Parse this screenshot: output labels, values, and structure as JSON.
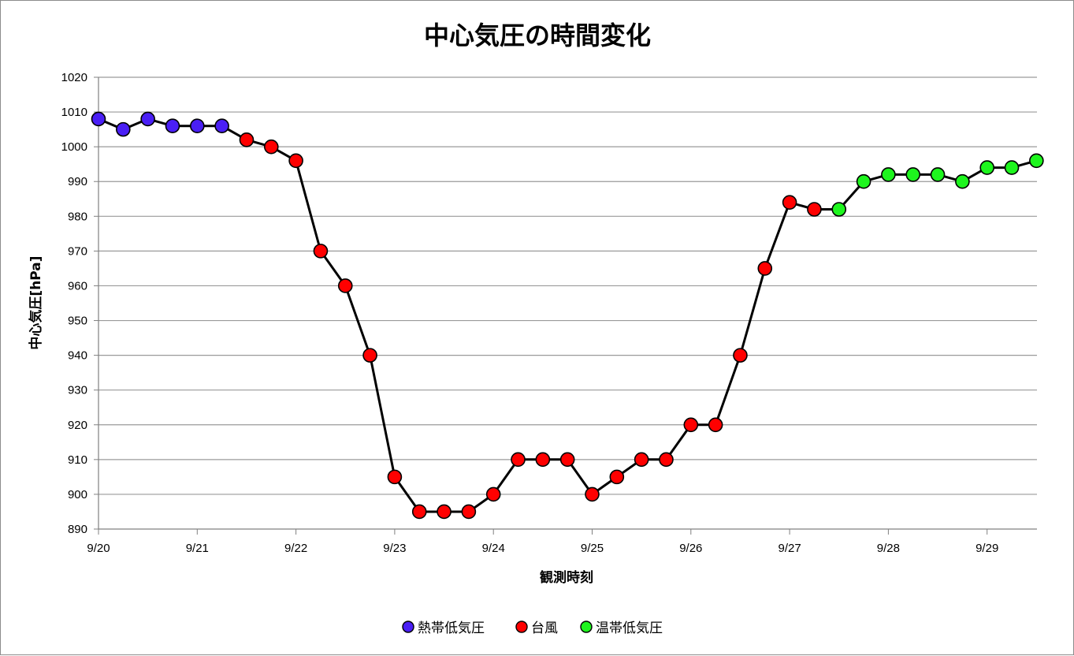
{
  "chart_data": {
    "type": "line",
    "title": "中心気圧の時間変化",
    "xlabel": "観測時刻",
    "ylabel": "中心気圧[hPa]",
    "xlim": [
      "9/20",
      "9/29 12:00"
    ],
    "ylim": [
      890,
      1020
    ],
    "y_ticks": [
      890,
      900,
      910,
      920,
      930,
      940,
      950,
      960,
      970,
      980,
      990,
      1000,
      1010,
      1020
    ],
    "x_tick_labels": [
      "9/20",
      "9/21",
      "9/22",
      "9/23",
      "9/24",
      "9/25",
      "9/26",
      "9/27",
      "9/28",
      "9/29"
    ],
    "grid": "horizontal",
    "legend_position": "bottom",
    "line_color": "#000000",
    "series": [
      {
        "name": "熱帯低気圧",
        "color": "#4a1ff5",
        "x": [
          "9/20 00:00",
          "9/20 06:00",
          "9/20 12:00",
          "9/20 18:00",
          "9/21 00:00",
          "9/21 06:00"
        ],
        "values": [
          1008,
          1005,
          1008,
          1006,
          1006,
          1006
        ]
      },
      {
        "name": "台風",
        "color": "#ff0000",
        "x": [
          "9/21 12:00",
          "9/21 18:00",
          "9/22 00:00",
          "9/22 06:00",
          "9/22 12:00",
          "9/22 18:00",
          "9/23 00:00",
          "9/23 06:00",
          "9/23 12:00",
          "9/23 18:00",
          "9/24 00:00",
          "9/24 06:00",
          "9/24 12:00",
          "9/24 18:00",
          "9/25 00:00",
          "9/25 06:00",
          "9/25 12:00",
          "9/25 18:00",
          "9/26 00:00",
          "9/26 06:00",
          "9/26 12:00",
          "9/26 18:00",
          "9/27 00:00",
          "9/27 06:00"
        ],
        "values": [
          1002,
          1000,
          996,
          970,
          960,
          940,
          905,
          895,
          895,
          895,
          900,
          910,
          910,
          910,
          900,
          905,
          910,
          910,
          920,
          920,
          940,
          965,
          984,
          982
        ]
      },
      {
        "name": "温帯低気圧",
        "color": "#1ef51e",
        "x": [
          "9/27 12:00",
          "9/27 18:00",
          "9/28 00:00",
          "9/28 06:00",
          "9/28 12:00",
          "9/28 18:00",
          "9/29 00:00",
          "9/29 06:00",
          "9/29 12:00"
        ],
        "values": [
          982,
          990,
          992,
          992,
          992,
          990,
          994,
          994,
          996
        ]
      }
    ]
  }
}
